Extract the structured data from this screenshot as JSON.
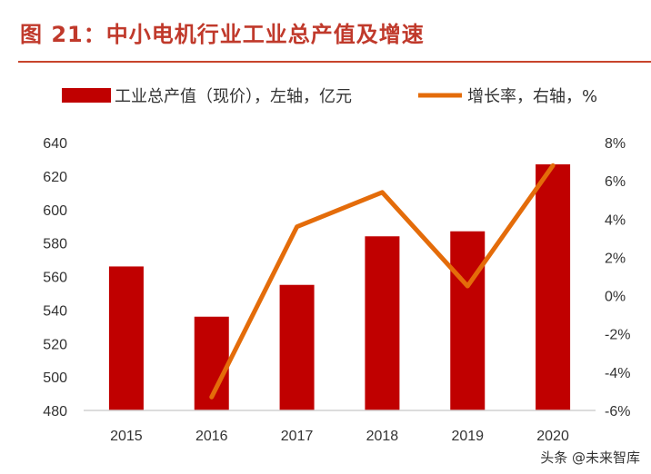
{
  "title": "图 21：中小电机行业工业总产值及增速",
  "watermark": "头条 @未来智库",
  "chart_data": {
    "type": "bar+line",
    "categories": [
      "2015",
      "2016",
      "2017",
      "2018",
      "2019",
      "2020"
    ],
    "series": [
      {
        "name": "工业总产值（现价），左轴，亿元",
        "type": "bar",
        "axis": "left",
        "color": "#c00000",
        "values": [
          566,
          536,
          555,
          584,
          587,
          627
        ]
      },
      {
        "name": "增长率，右轴，%",
        "type": "line",
        "axis": "right",
        "color": "#e46c0a",
        "values": [
          null,
          -5.3,
          3.6,
          5.4,
          0.5,
          6.8
        ]
      }
    ],
    "left_axis": {
      "range": [
        480,
        640
      ],
      "ticks": [
        "480",
        "500",
        "520",
        "540",
        "560",
        "580",
        "600",
        "620",
        "640"
      ]
    },
    "right_axis": {
      "range": [
        -6,
        8
      ],
      "ticks": [
        "-6%",
        "-4%",
        "-2%",
        "0%",
        "2%",
        "4%",
        "6%",
        "8%"
      ]
    },
    "legend": "top",
    "grid": false
  }
}
